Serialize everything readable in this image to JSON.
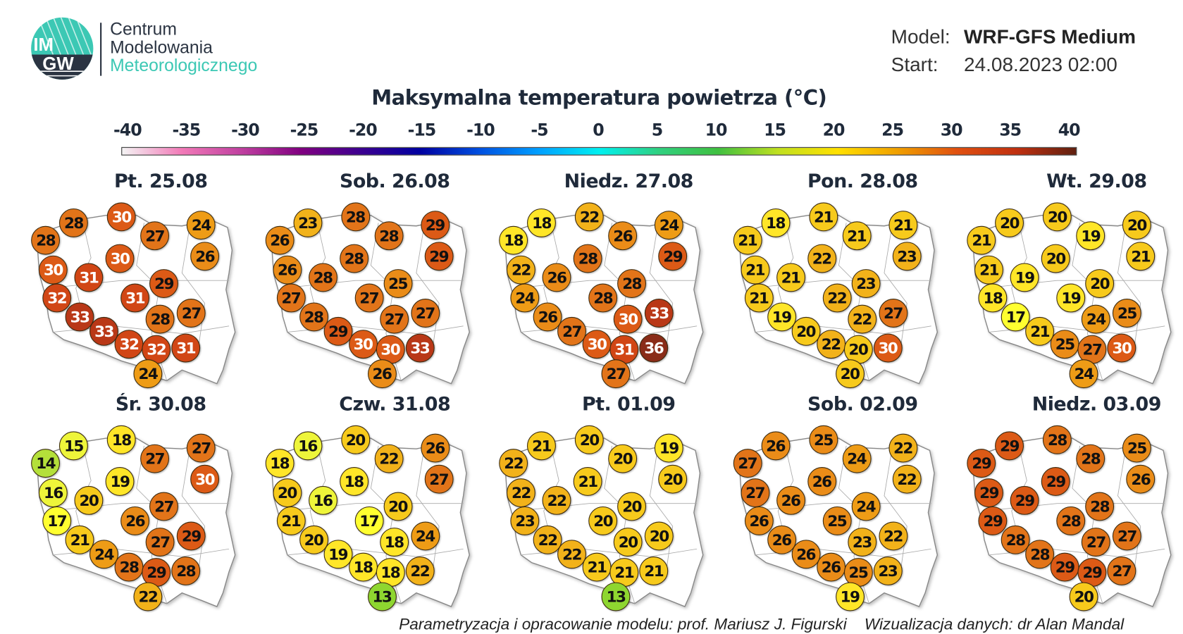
{
  "header": {
    "logo": {
      "letters_top": "IM",
      "letters_bottom": "GW",
      "colors": {
        "teal": "#3cc8b4",
        "navy": "#2b3442"
      }
    },
    "org_line1": "Centrum",
    "org_line2": "Modelowania",
    "org_line3": "Meteorologicznego",
    "model_label": "Model:",
    "model_value": "WRF-GFS Medium",
    "start_label": "Start:",
    "start_value": "24.08.2023 02:00"
  },
  "title": "Maksymalna temperatura powietrza (°C)",
  "colorbar": {
    "ticks": [
      "-40",
      "-35",
      "-30",
      "-25",
      "-20",
      "-15",
      "-10",
      "-5",
      "0",
      "5",
      "10",
      "15",
      "20",
      "25",
      "30",
      "35",
      "40"
    ],
    "colors": [
      "#f4f4f4",
      "#f27ab8",
      "#c040a0",
      "#800080",
      "#3c0090",
      "#0000a0",
      "#0050e0",
      "#00a0ff",
      "#00f0f0",
      "#30d080",
      "#40c040",
      "#c0e020",
      "#ffe000",
      "#f0a000",
      "#e05010",
      "#c03010",
      "#602010"
    ]
  },
  "days": [
    {
      "label": "Pt. 25.08",
      "values": [
        28,
        28,
        30,
        27,
        24,
        26,
        30,
        31,
        30,
        29,
        31,
        32,
        33,
        27,
        28,
        33,
        32,
        32,
        31,
        24
      ]
    },
    {
      "label": "Sob. 26.08",
      "values": [
        26,
        23,
        28,
        28,
        29,
        29,
        26,
        28,
        28,
        25,
        27,
        27,
        28,
        27,
        27,
        29,
        30,
        30,
        33,
        26
      ]
    },
    {
      "label": "Niedz. 27.08",
      "values": [
        18,
        18,
        22,
        26,
        24,
        29,
        22,
        26,
        28,
        28,
        28,
        24,
        26,
        33,
        30,
        27,
        30,
        31,
        36,
        27
      ]
    },
    {
      "label": "Pon. 28.08",
      "values": [
        21,
        18,
        21,
        21,
        21,
        23,
        21,
        21,
        22,
        23,
        22,
        21,
        19,
        27,
        22,
        20,
        22,
        20,
        30,
        20
      ]
    },
    {
      "label": "Wt. 29.08",
      "values": [
        21,
        20,
        20,
        19,
        20,
        21,
        21,
        19,
        20,
        20,
        19,
        18,
        17,
        25,
        24,
        21,
        25,
        27,
        30,
        24
      ]
    },
    {
      "label": "Śr. 30.08",
      "values": [
        14,
        15,
        18,
        27,
        27,
        30,
        16,
        20,
        19,
        27,
        26,
        17,
        21,
        29,
        27,
        24,
        28,
        29,
        28,
        22
      ]
    },
    {
      "label": "Czw. 31.08",
      "values": [
        18,
        16,
        20,
        22,
        26,
        27,
        20,
        16,
        18,
        20,
        17,
        21,
        20,
        24,
        18,
        19,
        18,
        18,
        22,
        13
      ]
    },
    {
      "label": "Pt. 01.09",
      "values": [
        22,
        21,
        20,
        20,
        19,
        20,
        22,
        22,
        21,
        20,
        20,
        23,
        22,
        20,
        20,
        22,
        21,
        21,
        21,
        13
      ]
    },
    {
      "label": "Sob. 02.09",
      "values": [
        27,
        26,
        25,
        24,
        22,
        22,
        27,
        26,
        26,
        24,
        25,
        26,
        26,
        22,
        23,
        26,
        26,
        25,
        23,
        19
      ]
    },
    {
      "label": "Niedz. 03.09",
      "values": [
        29,
        29,
        28,
        28,
        25,
        26,
        29,
        29,
        29,
        28,
        28,
        29,
        28,
        27,
        27,
        28,
        29,
        29,
        27,
        20
      ]
    }
  ],
  "credits": "Parametryzacja i opracowanie modelu: prof. Mariusz J. Figurski    Wizualizacja danych: dr Alan Mandal"
}
